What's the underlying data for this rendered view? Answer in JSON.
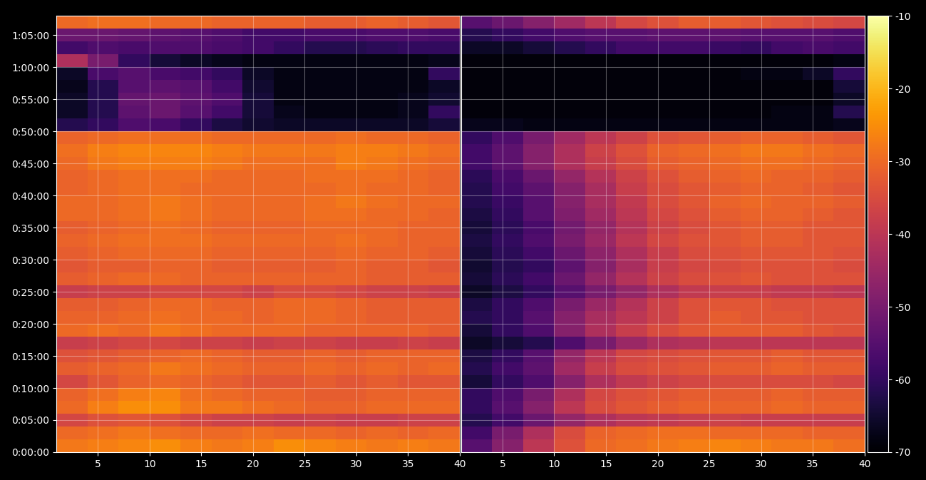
{
  "chart_data": [
    {
      "type": "heatmap",
      "color": "inferno",
      "grid": true,
      "x_edges": [
        1,
        4,
        7,
        10,
        13,
        16,
        19,
        22,
        25,
        28,
        31,
        34,
        37,
        40
      ],
      "y_edges": [
        0,
        120,
        240,
        360,
        480,
        600,
        720,
        840,
        960,
        1080,
        1200,
        1320,
        1440,
        1560,
        1680,
        1800,
        1920,
        2040,
        2160,
        2280,
        2400,
        2520,
        2640,
        2760,
        2880,
        3000,
        3120,
        3240,
        3360,
        3480,
        3600,
        3720,
        3840,
        3960,
        4080
      ],
      "xlim": [
        1,
        40
      ],
      "xticks": [
        5,
        10,
        15,
        20,
        25,
        30,
        35,
        40
      ],
      "ylim": [
        0,
        4080
      ],
      "yticks": [
        {
          "value": 0,
          "label": "0:00:00"
        },
        {
          "value": 300,
          "label": "0:05:00"
        },
        {
          "value": 600,
          "label": "0:10:00"
        },
        {
          "value": 900,
          "label": "0:15:00"
        },
        {
          "value": 1200,
          "label": "0:20:00"
        },
        {
          "value": 1500,
          "label": "0:25:00"
        },
        {
          "value": 1800,
          "label": "0:30:00"
        },
        {
          "value": 2100,
          "label": "0:35:00"
        },
        {
          "value": 2400,
          "label": "0:40:00"
        },
        {
          "value": 2700,
          "label": "0:45:00"
        },
        {
          "value": 3000,
          "label": "0:50:00"
        },
        {
          "value": 3300,
          "label": "0:55:00"
        },
        {
          "value": 3600,
          "label": "1:00:00"
        },
        {
          "value": 3900,
          "label": "1:05:00"
        }
      ],
      "cells": [
        [
          -28,
          -27,
          -26,
          -25,
          -27,
          -28,
          -27,
          -25,
          -26,
          -27,
          -28,
          -27,
          -28
        ],
        [
          -30,
          -29,
          -28,
          -29,
          -30,
          -30,
          -29,
          -30,
          -30,
          -31,
          -30,
          -31,
          -30
        ],
        [
          -36,
          -34,
          -33,
          -34,
          -36,
          -37,
          -37,
          -38,
          -37,
          -38,
          -38,
          -37,
          -37
        ],
        [
          -30,
          -27,
          -25,
          -25,
          -28,
          -28,
          -29,
          -30,
          -31,
          -31,
          -30,
          -30,
          -30
        ],
        [
          -31,
          -29,
          -27,
          -26,
          -29,
          -30,
          -31,
          -31,
          -32,
          -32,
          -31,
          -31,
          -31
        ],
        [
          -36,
          -33,
          -31,
          -30,
          -31,
          -32,
          -33,
          -33,
          -32,
          -33,
          -32,
          -33,
          -33
        ],
        [
          -32,
          -31,
          -30,
          -28,
          -29,
          -30,
          -31,
          -31,
          -30,
          -31,
          -30,
          -31,
          -30
        ],
        [
          -34,
          -33,
          -32,
          -31,
          -30,
          -31,
          -32,
          -32,
          -31,
          -32,
          -31,
          -31,
          -31
        ],
        [
          -38,
          -37,
          -36,
          -36,
          -37,
          -37,
          -38,
          -37,
          -37,
          -38,
          -38,
          -37,
          -38
        ],
        [
          -30,
          -29,
          -30,
          -28,
          -29,
          -30,
          -30,
          -30,
          -31,
          -31,
          -31,
          -31,
          -32
        ],
        [
          -31,
          -31,
          -30,
          -29,
          -30,
          -30,
          -31,
          -30,
          -30,
          -31,
          -32,
          -32,
          -32
        ],
        [
          -32,
          -32,
          -31,
          -30,
          -30,
          -31,
          -31,
          -30,
          -30,
          -31,
          -32,
          -32,
          -32
        ],
        [
          -38,
          -37,
          -37,
          -36,
          -36,
          -36,
          -37,
          -35,
          -35,
          -36,
          -37,
          -37,
          -38
        ],
        [
          -32,
          -31,
          -30,
          -30,
          -31,
          -31,
          -31,
          -31,
          -31,
          -31,
          -32,
          -32,
          -32
        ],
        [
          -33,
          -32,
          -32,
          -31,
          -31,
          -32,
          -32,
          -32,
          -32,
          -31,
          -32,
          -32,
          -33
        ],
        [
          -32,
          -31,
          -30,
          -30,
          -30,
          -31,
          -31,
          -31,
          -31,
          -30,
          -31,
          -31,
          -32
        ],
        [
          -31,
          -30,
          -29,
          -29,
          -29,
          -30,
          -30,
          -30,
          -30,
          -29,
          -30,
          -31,
          -31
        ],
        [
          -32,
          -31,
          -30,
          -29,
          -30,
          -31,
          -31,
          -31,
          -30,
          -30,
          -30,
          -31,
          -31
        ],
        [
          -30,
          -30,
          -29,
          -28,
          -29,
          -30,
          -30,
          -30,
          -29,
          -29,
          -30,
          -30,
          -31
        ],
        [
          -30,
          -30,
          -29,
          -28,
          -29,
          -30,
          -30,
          -30,
          -29,
          -28,
          -29,
          -30,
          -30
        ],
        [
          -31,
          -30,
          -29,
          -29,
          -30,
          -30,
          -30,
          -30,
          -30,
          -29,
          -30,
          -30,
          -31
        ],
        [
          -31,
          -30,
          -29,
          -29,
          -29,
          -30,
          -30,
          -30,
          -29,
          -29,
          -29,
          -30,
          -31
        ],
        [
          -30,
          -28,
          -27,
          -27,
          -27,
          -28,
          -29,
          -29,
          -29,
          -27,
          -28,
          -29,
          -30
        ],
        [
          -29,
          -27,
          -26,
          -26,
          -26,
          -27,
          -28,
          -28,
          -28,
          -27,
          -27,
          -28,
          -29
        ],
        [
          -31,
          -30,
          -29,
          -29,
          -29,
          -30,
          -30,
          -30,
          -30,
          -29,
          -30,
          -30,
          -31
        ],
        [
          -62,
          -60,
          -56,
          -57,
          -60,
          -63,
          -65,
          -66,
          -66,
          -66,
          -66,
          -66,
          -64
        ],
        [
          -66,
          -62,
          -54,
          -52,
          -55,
          -58,
          -64,
          -67,
          -68,
          -68,
          -68,
          -67,
          -60
        ],
        [
          -66,
          -62,
          -53,
          -52,
          -54,
          -56,
          -64,
          -68,
          -68,
          -68,
          -68,
          -67,
          -65
        ],
        [
          -67,
          -62,
          -55,
          -54,
          -55,
          -58,
          -65,
          -68,
          -68,
          -68,
          -68,
          -68,
          -66
        ],
        [
          -66,
          -57,
          -55,
          -57,
          -58,
          -60,
          -66,
          -68,
          -68,
          -68,
          -68,
          -68,
          -60
        ],
        [
          -42,
          -50,
          -60,
          -64,
          -66,
          -67,
          -68,
          -68,
          -68,
          -68,
          -68,
          -68,
          -67
        ],
        [
          -58,
          -56,
          -57,
          -56,
          -56,
          -57,
          -58,
          -60,
          -62,
          -62,
          -61,
          -60,
          -60
        ],
        [
          -52,
          -52,
          -53,
          -54,
          -55,
          -56,
          -58,
          -58,
          -57,
          -57,
          -56,
          -56,
          -57
        ],
        [
          -30,
          -29,
          -29,
          -30,
          -30,
          -31,
          -31,
          -31,
          -32,
          -32,
          -31,
          -32,
          -33
        ]
      ]
    },
    {
      "type": "heatmap",
      "color": "inferno",
      "grid": true,
      "tick_labels": "x",
      "x_edges": [
        1,
        4,
        7,
        10,
        13,
        16,
        19,
        22,
        25,
        28,
        31,
        34,
        37,
        40
      ],
      "y_edges": [
        0,
        120,
        240,
        360,
        480,
        600,
        720,
        840,
        960,
        1080,
        1200,
        1320,
        1440,
        1560,
        1680,
        1800,
        1920,
        2040,
        2160,
        2280,
        2400,
        2520,
        2640,
        2760,
        2880,
        3000,
        3120,
        3240,
        3360,
        3480,
        3600,
        3720,
        3840,
        3960,
        4080
      ],
      "xlim": [
        1,
        40
      ],
      "xticks": [
        5,
        10,
        15,
        20,
        25,
        30,
        35,
        40
      ],
      "ylim": [
        0,
        4080
      ],
      "yticks": [
        0,
        300,
        600,
        900,
        1200,
        1500,
        1800,
        2100,
        2400,
        2700,
        3000,
        3300,
        3600,
        3900
      ],
      "colorbar_range": [
        -70,
        -10
      ],
      "colorbar_ticks": [
        -70,
        -60,
        -50,
        -40,
        -30,
        -20,
        -10
      ],
      "cells": [
        [
          -55,
          -48,
          -40,
          -34,
          -30,
          -29,
          -28,
          -27,
          -26,
          -27,
          -28,
          -28,
          -29
        ],
        [
          -58,
          -50,
          -42,
          -35,
          -31,
          -30,
          -29,
          -29,
          -30,
          -30,
          -30,
          -31,
          -31
        ],
        [
          -62,
          -58,
          -52,
          -46,
          -42,
          -40,
          -39,
          -38,
          -37,
          -38,
          -38,
          -38,
          -38
        ],
        [
          -60,
          -55,
          -48,
          -40,
          -35,
          -33,
          -32,
          -31,
          -31,
          -31,
          -30,
          -31,
          -31
        ],
        [
          -60,
          -56,
          -50,
          -42,
          -36,
          -34,
          -33,
          -32,
          -32,
          -32,
          -31,
          -32,
          -32
        ],
        [
          -64,
          -60,
          -56,
          -48,
          -42,
          -39,
          -37,
          -36,
          -35,
          -35,
          -35,
          -35,
          -36
        ],
        [
          -62,
          -58,
          -54,
          -44,
          -38,
          -35,
          -34,
          -33,
          -32,
          -32,
          -31,
          -32,
          -32
        ],
        [
          -63,
          -60,
          -55,
          -46,
          -40,
          -36,
          -35,
          -34,
          -33,
          -33,
          -32,
          -33,
          -33
        ],
        [
          -66,
          -64,
          -62,
          -56,
          -50,
          -45,
          -42,
          -41,
          -40,
          -40,
          -40,
          -40,
          -40
        ],
        [
          -64,
          -60,
          -56,
          -48,
          -42,
          -38,
          -35,
          -33,
          -32,
          -32,
          -32,
          -33,
          -34
        ],
        [
          -62,
          -60,
          -55,
          -48,
          -43,
          -40,
          -37,
          -34,
          -32,
          -33,
          -33,
          -34,
          -34
        ],
        [
          -63,
          -60,
          -56,
          -50,
          -45,
          -41,
          -37,
          -34,
          -33,
          -33,
          -34,
          -34,
          -34
        ],
        [
          -66,
          -63,
          -60,
          -55,
          -50,
          -46,
          -42,
          -39,
          -38,
          -38,
          -39,
          -39,
          -40
        ],
        [
          -64,
          -61,
          -58,
          -52,
          -46,
          -41,
          -37,
          -35,
          -34,
          -33,
          -34,
          -34,
          -34
        ],
        [
          -65,
          -62,
          -60,
          -54,
          -48,
          -43,
          -38,
          -36,
          -35,
          -34,
          -34,
          -34,
          -35
        ],
        [
          -64,
          -61,
          -58,
          -52,
          -47,
          -42,
          -38,
          -35,
          -34,
          -33,
          -33,
          -33,
          -34
        ],
        [
          -63,
          -60,
          -56,
          -50,
          -45,
          -40,
          -36,
          -34,
          -33,
          -32,
          -32,
          -33,
          -33
        ],
        [
          -64,
          -61,
          -57,
          -51,
          -46,
          -41,
          -37,
          -35,
          -33,
          -32,
          -32,
          -33,
          -33
        ],
        [
          -63,
          -60,
          -55,
          -49,
          -44,
          -40,
          -36,
          -34,
          -32,
          -31,
          -31,
          -32,
          -33
        ],
        [
          -62,
          -59,
          -55,
          -48,
          -43,
          -39,
          -35,
          -33,
          -31,
          -30,
          -31,
          -31,
          -32
        ],
        [
          -62,
          -58,
          -54,
          -48,
          -43,
          -38,
          -35,
          -33,
          -32,
          -31,
          -31,
          -32,
          -33
        ],
        [
          -61,
          -57,
          -52,
          -46,
          -41,
          -37,
          -34,
          -32,
          -31,
          -30,
          -31,
          -31,
          -32
        ],
        [
          -58,
          -54,
          -48,
          -42,
          -38,
          -35,
          -32,
          -31,
          -30,
          -29,
          -29,
          -30,
          -31
        ],
        [
          -58,
          -54,
          -48,
          -42,
          -37,
          -34,
          -31,
          -30,
          -29,
          -28,
          -28,
          -29,
          -30
        ],
        [
          -60,
          -56,
          -50,
          -44,
          -40,
          -37,
          -34,
          -33,
          -32,
          -31,
          -31,
          -32,
          -33
        ],
        [
          -67,
          -67,
          -68,
          -68,
          -68,
          -68,
          -68,
          -68,
          -68,
          -68,
          -68,
          -68,
          -67
        ],
        [
          -69,
          -69,
          -69,
          -69,
          -69,
          -69,
          -69,
          -69,
          -69,
          -69,
          -68,
          -68,
          -62
        ],
        [
          -69,
          -69,
          -69,
          -69,
          -69,
          -69,
          -69,
          -69,
          -69,
          -69,
          -69,
          -69,
          -66
        ],
        [
          -69,
          -69,
          -69,
          -69,
          -69,
          -69,
          -69,
          -69,
          -69,
          -69,
          -69,
          -69,
          -64
        ],
        [
          -69,
          -69,
          -69,
          -69,
          -69,
          -69,
          -69,
          -69,
          -69,
          -68,
          -68,
          -66,
          -60
        ],
        [
          -69,
          -69,
          -69,
          -69,
          -69,
          -69,
          -69,
          -69,
          -69,
          -69,
          -69,
          -69,
          -68
        ],
        [
          -66,
          -66,
          -64,
          -62,
          -60,
          -58,
          -58,
          -58,
          -59,
          -60,
          -58,
          -57,
          -58
        ],
        [
          -62,
          -60,
          -58,
          -56,
          -55,
          -55,
          -54,
          -54,
          -54,
          -55,
          -55,
          -55,
          -56
        ],
        [
          -55,
          -52,
          -48,
          -44,
          -40,
          -36,
          -34,
          -32,
          -32,
          -33,
          -34,
          -35,
          -36
        ]
      ]
    }
  ]
}
